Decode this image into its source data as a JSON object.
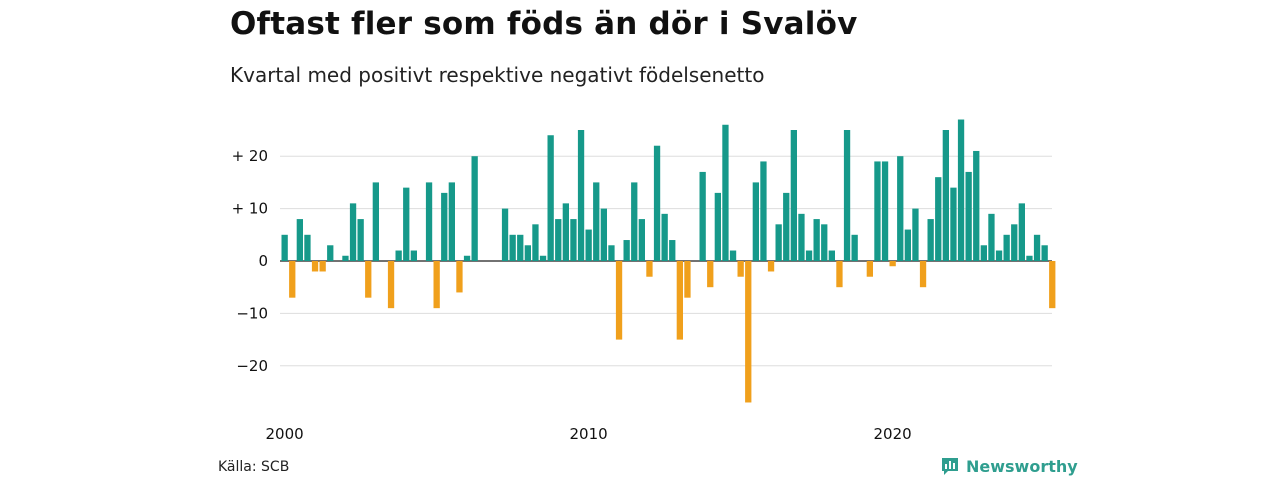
{
  "title": "Oftast fler som föds än dör i Svalöv",
  "subtitle": "Kvartal med positivt respektive negativt födelsenetto",
  "source": "Källa: SCB",
  "brand": {
    "name": "Newsworthy",
    "icon": "newsworthy-logo-icon",
    "color": "#2f9e8f"
  },
  "colors": {
    "positive": "#16998a",
    "negative": "#f0a01c",
    "grid": "#dddddd",
    "zero": "#444444"
  },
  "chart_data": {
    "type": "bar",
    "x_start": "2000 Q1",
    "x_tick_labels": [
      "2000",
      "2010",
      "2020"
    ],
    "y_tick_labels": [
      "+ 20",
      "+ 10",
      "0",
      "−10",
      "−20"
    ],
    "y_ticks": [
      20,
      10,
      0,
      -10,
      -20
    ],
    "ylim": [
      -28,
      28
    ],
    "grid": true,
    "values": [
      5,
      -7,
      8,
      5,
      -2,
      -2,
      3,
      0,
      1,
      11,
      8,
      -7,
      15,
      0,
      -9,
      2,
      14,
      2,
      0,
      15,
      -9,
      13,
      15,
      -6,
      1,
      20,
      0,
      0,
      0,
      10,
      5,
      5,
      3,
      7,
      1,
      24,
      8,
      11,
      8,
      25,
      6,
      15,
      10,
      3,
      -15,
      4,
      15,
      8,
      -3,
      22,
      9,
      4,
      -15,
      -7,
      0,
      17,
      -5,
      13,
      26,
      2,
      -3,
      -27,
      15,
      19,
      -2,
      7,
      13,
      25,
      9,
      2,
      8,
      7,
      2,
      -5,
      25,
      5,
      0,
      -3,
      19,
      19,
      -1,
      20,
      6,
      10,
      -5,
      8,
      16,
      25,
      14,
      27,
      17,
      21,
      3,
      9,
      2,
      5,
      7,
      11,
      1,
      5,
      3,
      -9
    ]
  }
}
